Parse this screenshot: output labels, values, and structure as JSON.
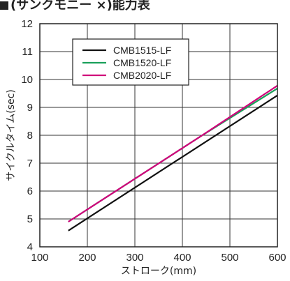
{
  "header": {
    "title": "(サンクモニー ×)能力表"
  },
  "chart_data": {
    "type": "line",
    "title": "(サンクモニー ×)能力表",
    "xlabel": "ストローク(mm)",
    "ylabel": "サイクルタイム(sec)",
    "xlim": [
      100,
      600
    ],
    "ylim": [
      4,
      12
    ],
    "xticks": [
      100,
      200,
      300,
      400,
      500,
      600
    ],
    "yticks": [
      4,
      5,
      6,
      7,
      8,
      9,
      10,
      11,
      12
    ],
    "xtick_labels": [
      "100",
      "200",
      "300",
      "400",
      "500",
      "600"
    ],
    "ytick_labels": [
      "4",
      "5",
      "6",
      "7",
      "8",
      "9",
      "10",
      "11",
      "12"
    ],
    "grid": true,
    "legend_position": "top-left",
    "series": [
      {
        "name": "CMB1515-LF",
        "color": "#111111",
        "x": [
          160,
          600
        ],
        "y": [
          4.58,
          9.43
        ]
      },
      {
        "name": "CMB1520-LF",
        "color": "#1aa05a",
        "x": [
          160,
          440,
          600
        ],
        "y": [
          4.9,
          7.98,
          9.68
        ]
      },
      {
        "name": "CMB2020-LF",
        "color": "#d0007a",
        "x": [
          160,
          440,
          600
        ],
        "y": [
          4.9,
          7.98,
          9.78
        ]
      }
    ]
  }
}
